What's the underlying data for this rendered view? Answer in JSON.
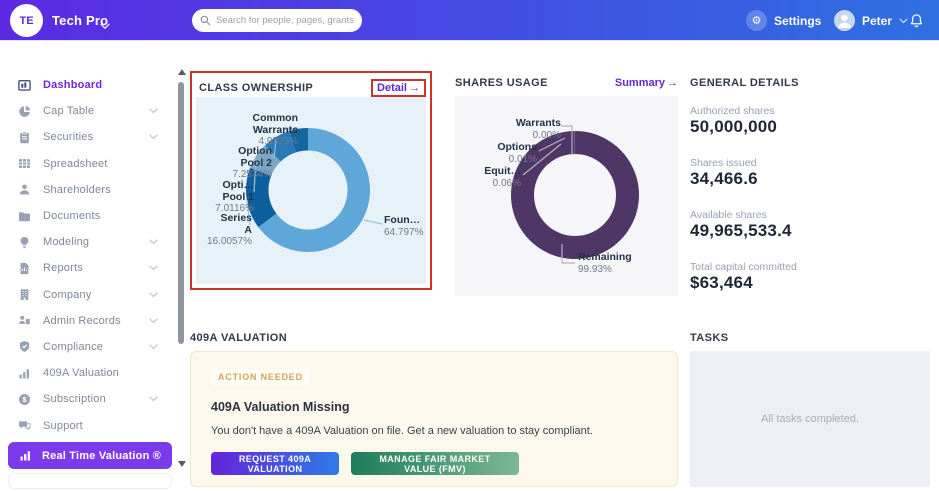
{
  "topbar": {
    "logo": "TE",
    "company": "Tech Pro",
    "search_placeholder": "Search for people, pages, grants",
    "settings_label": "Settings",
    "user_name": "Peter"
  },
  "ui": {
    "arrow_right": "→"
  },
  "colors": {
    "navbar_gradient_left": "#5b2ae2",
    "navbar_gradient_right": "#2e70e2",
    "accent_purple": "#6d28d9",
    "highlight_red": "#c9342c",
    "warning_badge_text": "#d6a45c",
    "request_btn_gradient": [
      "#6325d9",
      "#2f7ae8"
    ],
    "manage_btn_gradient": [
      "#1d7d5b",
      "#7db793"
    ]
  },
  "sidebar": {
    "items": [
      {
        "label": "Dashboard",
        "icon": "dashboard-icon",
        "expandable": false,
        "active": true
      },
      {
        "label": "Cap Table",
        "icon": "pie-chart-icon",
        "expandable": true,
        "active": false
      },
      {
        "label": "Securities",
        "icon": "clipboard-icon",
        "expandable": true,
        "active": false
      },
      {
        "label": "Spreadsheet",
        "icon": "table-icon",
        "expandable": false,
        "active": false
      },
      {
        "label": "Shareholders",
        "icon": "person-icon",
        "expandable": false,
        "active": false
      },
      {
        "label": "Documents",
        "icon": "folder-icon",
        "expandable": false,
        "active": false
      },
      {
        "label": "Modeling",
        "icon": "lightbulb-icon",
        "expandable": true,
        "active": false
      },
      {
        "label": "Reports",
        "icon": "report-icon",
        "expandable": true,
        "active": false
      },
      {
        "label": "Company",
        "icon": "building-icon",
        "expandable": true,
        "active": false
      },
      {
        "label": "Admin Records",
        "icon": "id-card-icon",
        "expandable": true,
        "active": false
      },
      {
        "label": "Compliance",
        "icon": "shield-check-icon",
        "expandable": true,
        "active": false
      },
      {
        "label": "409A Valuation",
        "icon": "bar-chart-icon",
        "expandable": false,
        "active": false
      },
      {
        "label": "Subscription",
        "icon": "dollar-circle-icon",
        "expandable": true,
        "active": false
      },
      {
        "label": "Support",
        "icon": "chat-icon",
        "expandable": false,
        "active": false
      }
    ],
    "bottom_pill": {
      "label": "Real Time Valuation ®",
      "icon": "bar-chart-icon"
    }
  },
  "sections": {
    "class_ownership": {
      "title": "CLASS OWNERSHIP",
      "link": "Detail"
    },
    "shares_usage": {
      "title": "SHARES USAGE",
      "link": "Summary"
    },
    "general_details": {
      "title": "GENERAL DETAILS",
      "items": [
        {
          "label": "Authorized shares",
          "value": "50,000,000"
        },
        {
          "label": "Shares issued",
          "value": "34,466.6"
        },
        {
          "label": "Available shares",
          "value": "49,965,533.4"
        },
        {
          "label": "Total capital committed",
          "value": "$63,464"
        }
      ]
    },
    "valuation_409a": {
      "title": "409A VALUATION",
      "badge": "ACTION NEEDED",
      "heading": "409A Valuation Missing",
      "body": "You don't have a 409A Valuation on file. Get a new valuation to stay compliant.",
      "request_button": "REQUEST 409A VALUATION",
      "manage_button": "MANAGE FAIR MARKET VALUE (FMV)"
    },
    "tasks": {
      "title": "TASKS",
      "empty_message": "All tasks completed."
    }
  },
  "chart_data": [
    {
      "type": "pie",
      "variant": "donut",
      "title": "Class Ownership",
      "categories": [
        "Founders",
        "Series A",
        "Option Pool 1",
        "Option Pool 2",
        "Common Warrants"
      ],
      "values": [
        64.797,
        16.0057,
        7.0116,
        7.2534,
        4.9323
      ],
      "unit": "%",
      "colors": [
        "#5ea7d8",
        "#0e5f9d",
        "#7ca6c6",
        "#2b7ab6",
        "#15679f"
      ],
      "start_angle_deg": 0,
      "direction": "clockwise",
      "background": "#e7f1f8",
      "labels": {
        "founders": {
          "name": "Foun…",
          "pct": "64.797%"
        },
        "series_a": {
          "name": "Series\nA",
          "pct": "16.0057%"
        },
        "option_pool_1": {
          "name": "Opti…\nPool 1",
          "pct": "7.0116%"
        },
        "option_pool_2": {
          "name": "Option\nPool 2",
          "pct": "7.2534%"
        },
        "common_warrants": {
          "name": "Common\nWarrants",
          "pct": "4.9323%"
        }
      }
    },
    {
      "type": "pie",
      "variant": "donut",
      "title": "Shares Usage",
      "categories": [
        "Remaining",
        "Equity",
        "Options",
        "Warrants"
      ],
      "values": [
        99.93,
        0.06,
        0.01,
        0.0
      ],
      "unit": "%",
      "colors": [
        "#4e3666",
        "#9b89b3",
        "#c3b7d4",
        "#e0d9ea"
      ],
      "start_angle_deg": 0,
      "direction": "clockwise",
      "background": "#f6f6f9",
      "labels": {
        "warrants": {
          "name": "Warrants",
          "pct": "0.00%"
        },
        "options": {
          "name": "Options",
          "pct": "0.01%"
        },
        "equity": {
          "name": "Equit…",
          "pct": "0.06%"
        },
        "remaining": {
          "name": "Remaining",
          "pct": "99.93%"
        }
      }
    }
  ]
}
